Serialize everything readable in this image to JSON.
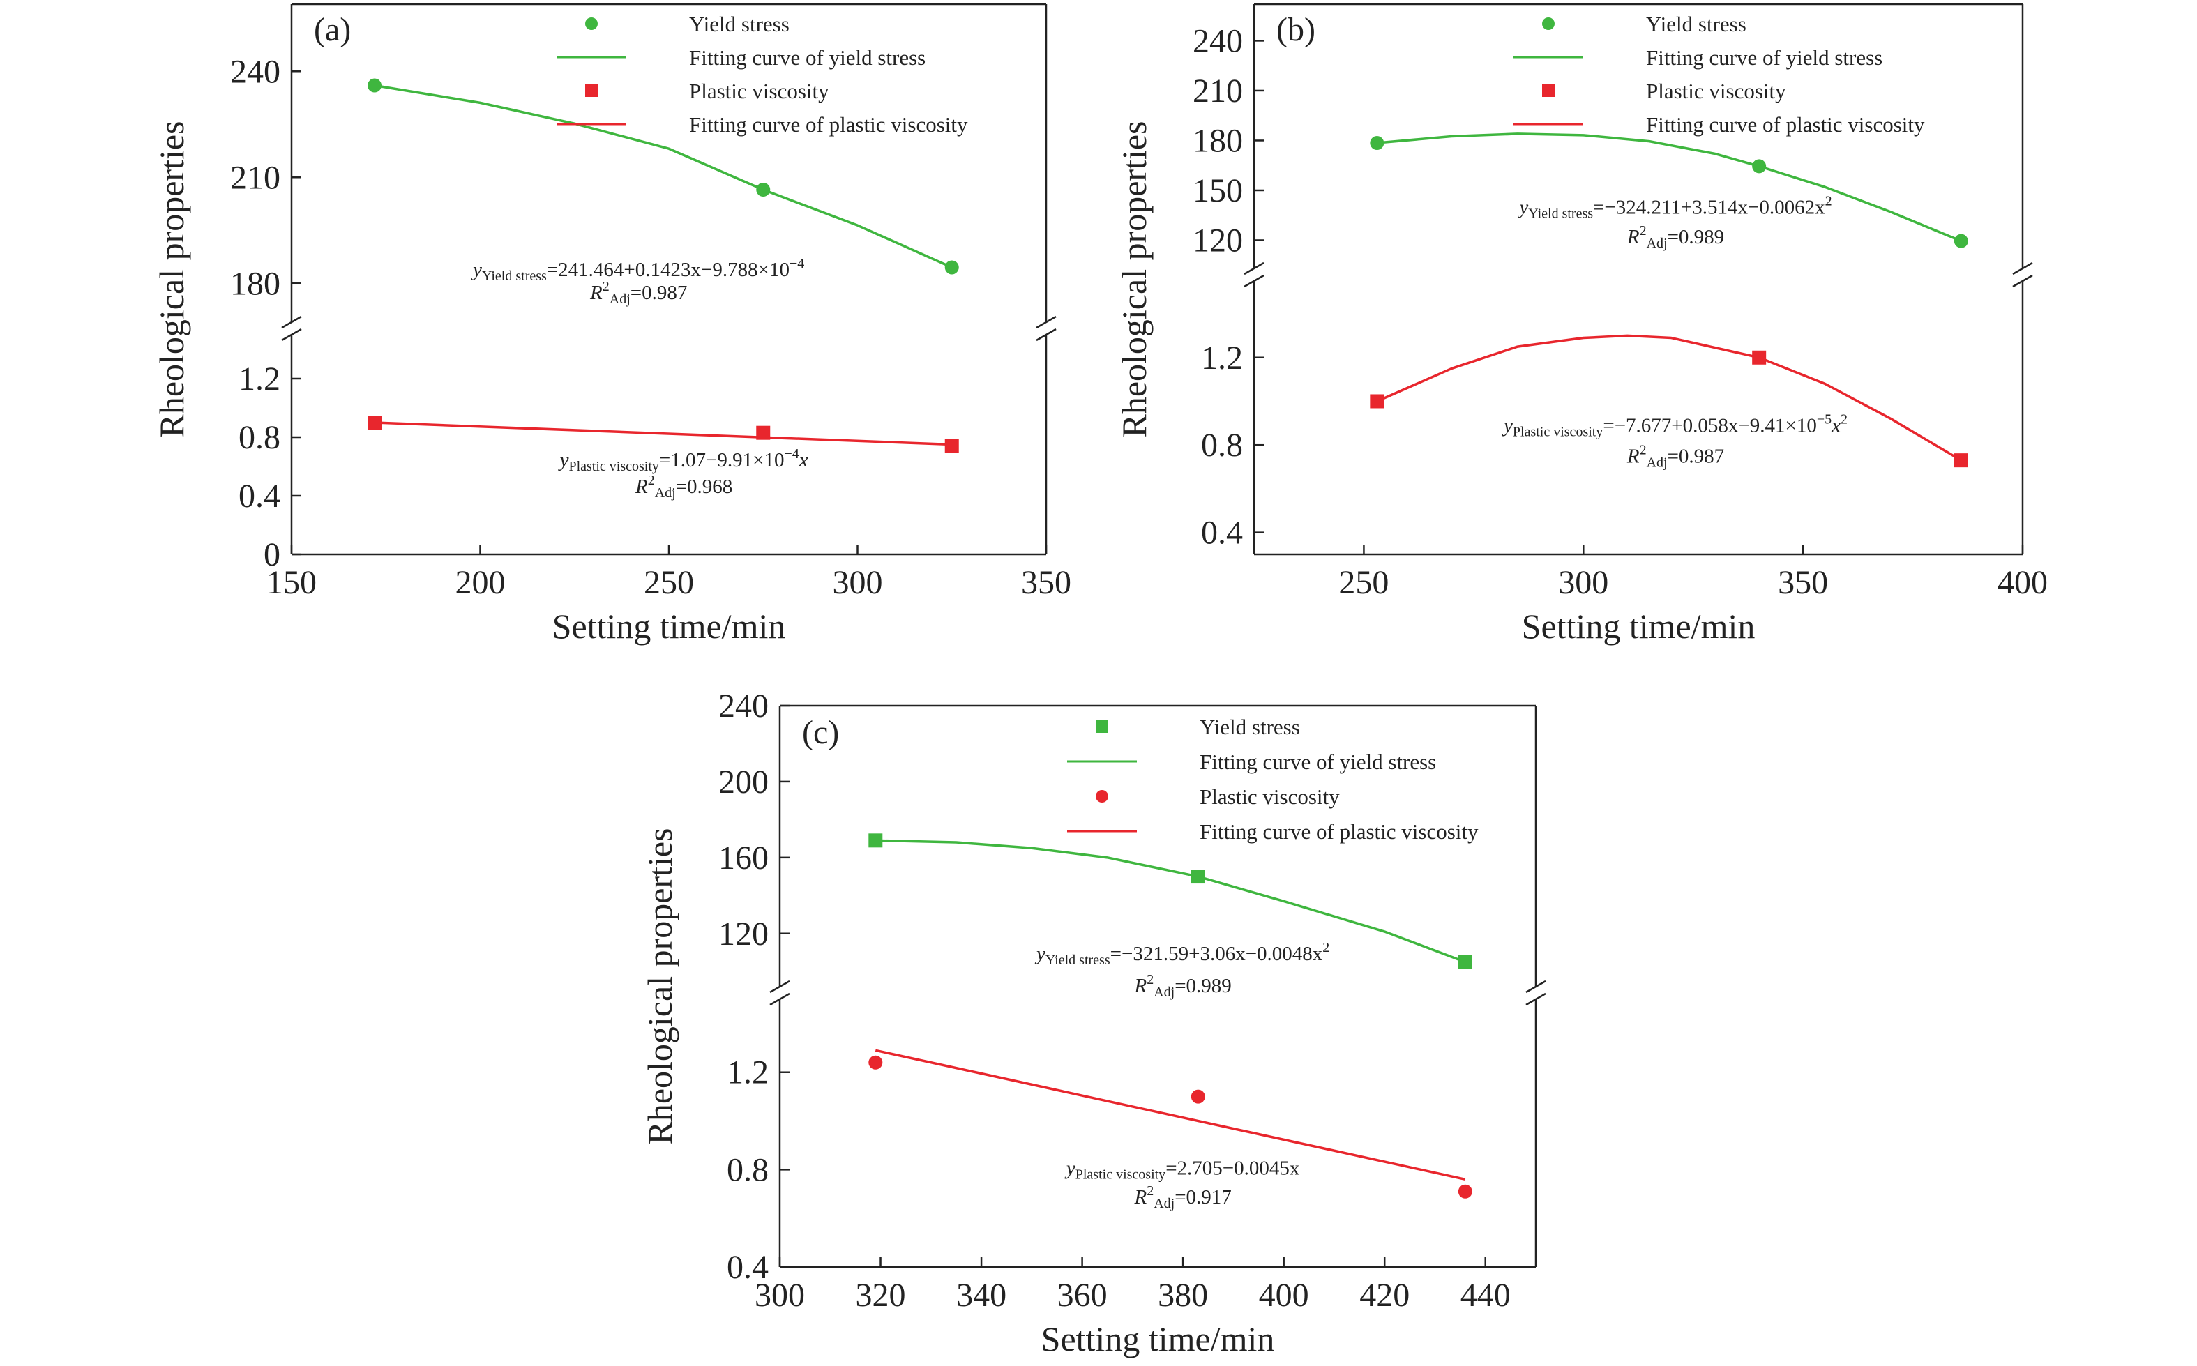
{
  "legend_icons": {
    "circle": "circle-marker",
    "square": "square-marker"
  },
  "chart_data": [
    {
      "type": "scatter",
      "panel_label": "(a)",
      "xlabel": "Setting time/min",
      "ylabel": "Rheological properties",
      "xlim": [
        150,
        350
      ],
      "xticks": [
        150,
        200,
        250,
        300,
        350
      ],
      "upper_axis": {
        "ylim": [
          169,
          259
        ],
        "yticks": [
          180,
          210,
          240
        ]
      },
      "lower_axis": {
        "ylim": [
          0,
          1.5
        ],
        "yticks": [
          0,
          0.4,
          0.8,
          1.2
        ]
      },
      "grid": false,
      "legend_position": "top-right",
      "series": [
        {
          "name": "Yield stress",
          "axis": "upper",
          "marker": "circle",
          "color": "#3fb63f",
          "x": [
            172,
            275,
            325
          ],
          "y": [
            236,
            206.5,
            184.5
          ]
        },
        {
          "name": "Fitting curve of yield stress",
          "axis": "upper",
          "kind": "line",
          "color": "#3fb63f",
          "x": [
            172,
            200,
            225,
            250,
            275,
            300,
            325
          ],
          "y": [
            236,
            231.1,
            225.2,
            218.1,
            206.5,
            196.4,
            184.5
          ]
        },
        {
          "name": "Plastic viscosity",
          "axis": "lower",
          "marker": "square",
          "color": "#e8262d",
          "x": [
            172,
            275,
            325
          ],
          "y": [
            0.9,
            0.83,
            0.74
          ]
        },
        {
          "name": "Fitting curve of plastic viscosity",
          "axis": "lower",
          "kind": "line",
          "color": "#e8262d",
          "x": [
            172,
            325
          ],
          "y": [
            0.9,
            0.75
          ]
        }
      ],
      "equations": [
        {
          "y_sub": "Yield stress",
          "rhs": "=241.464+0.1423x−9.788×10",
          "sup": "−4",
          "r2": "=0.987",
          "axis": "upper",
          "x": 242,
          "y": 182,
          "r2_y": 175.5
        },
        {
          "y_sub": "Plastic viscosity",
          "rhs": "=1.07−9.91×10",
          "sup": "−4",
          "rhs_tail": "x",
          "r2": "=0.968",
          "axis": "lower",
          "x": 254,
          "y": 0.6,
          "r2_y": 0.42
        }
      ]
    },
    {
      "type": "scatter",
      "panel_label": "(b)",
      "xlabel": "Setting time/min",
      "ylabel": "Rheological properties",
      "xlim": [
        225,
        400
      ],
      "xticks": [
        250,
        300,
        350,
        400
      ],
      "upper_axis": {
        "ylim": [
          103,
          262
        ],
        "yticks": [
          120,
          150,
          180,
          210,
          240
        ]
      },
      "lower_axis": {
        "ylim": [
          0.3,
          1.55
        ],
        "yticks": [
          0.4,
          0.8,
          1.2
        ]
      },
      "grid": false,
      "legend_position": "top-right",
      "series": [
        {
          "name": "Yield stress",
          "axis": "upper",
          "marker": "circle",
          "color": "#3fb63f",
          "x": [
            253,
            340,
            386
          ],
          "y": [
            178.5,
            164.5,
            119.5
          ]
        },
        {
          "name": "Fitting curve of yield stress",
          "axis": "upper",
          "kind": "line",
          "color": "#3fb63f",
          "x": [
            253,
            270,
            285,
            300,
            315,
            330,
            340,
            355,
            370,
            386
          ],
          "y": [
            178.5,
            182.5,
            184,
            183.2,
            179.5,
            172,
            164.5,
            152,
            137,
            119.5
          ]
        },
        {
          "name": "Plastic viscosity",
          "axis": "lower",
          "marker": "square",
          "color": "#e8262d",
          "x": [
            253,
            340,
            386
          ],
          "y": [
            1.0,
            1.2,
            0.73
          ]
        },
        {
          "name": "Fitting curve of plastic viscosity",
          "axis": "lower",
          "kind": "line",
          "color": "#e8262d",
          "x": [
            253,
            270,
            285,
            300,
            310,
            320,
            340,
            355,
            370,
            386
          ],
          "y": [
            1.0,
            1.15,
            1.25,
            1.29,
            1.3,
            1.29,
            1.2,
            1.08,
            0.92,
            0.73
          ]
        }
      ],
      "equations": [
        {
          "y_sub": "Yield stress",
          "rhs": "=−324.211+3.514x−0.0062x",
          "sup": "2",
          "r2": "=0.989",
          "axis": "upper",
          "x": 321,
          "y": 136,
          "r2_y": 118
        },
        {
          "y_sub": "Plastic viscosity",
          "rhs": "=−7.677+0.058x−9.41×10",
          "sup": "−5",
          "rhs_tail": "x",
          "sup2": "2",
          "r2": "=0.987",
          "axis": "lower",
          "x": 321,
          "y": 0.86,
          "r2_y": 0.72
        }
      ]
    },
    {
      "type": "scatter",
      "panel_label": "(c)",
      "xlabel": "Setting time/min",
      "ylabel": "Rheological properties",
      "xlim": [
        300,
        450
      ],
      "xticks": [
        300,
        320,
        340,
        360,
        380,
        400,
        420,
        440
      ],
      "upper_axis": {
        "ylim": [
          92,
          240
        ],
        "yticks": [
          120,
          160,
          200,
          240
        ]
      },
      "lower_axis": {
        "ylim": [
          0.4,
          1.5
        ],
        "yticks": [
          0.4,
          0.8,
          1.2
        ]
      },
      "grid": false,
      "legend_position": "top-right",
      "series": [
        {
          "name": "Yield stress",
          "axis": "upper",
          "marker": "square",
          "color": "#3fb63f",
          "x": [
            319,
            383,
            436
          ],
          "y": [
            169,
            150,
            105
          ]
        },
        {
          "name": "Fitting curve of yield stress",
          "axis": "upper",
          "kind": "line",
          "color": "#3fb63f",
          "x": [
            319,
            335,
            350,
            365,
            383,
            400,
            420,
            436
          ],
          "y": [
            169,
            168,
            165,
            160,
            150,
            137,
            121,
            105
          ]
        },
        {
          "name": "Plastic viscosity",
          "axis": "lower",
          "marker": "circle",
          "color": "#e8262d",
          "x": [
            319,
            383,
            436
          ],
          "y": [
            1.24,
            1.1,
            0.71
          ]
        },
        {
          "name": "Fitting curve of plastic viscosity",
          "axis": "lower",
          "kind": "line",
          "color": "#e8262d",
          "x": [
            319,
            436
          ],
          "y": [
            1.29,
            0.76
          ]
        }
      ],
      "equations": [
        {
          "y_sub": "Yield stress",
          "rhs": "=−321.59+3.06x−0.0048x",
          "sup": "2",
          "r2": "=0.989",
          "axis": "upper",
          "x": 380,
          "y": 106,
          "r2_y": 89
        },
        {
          "y_sub": "Plastic viscosity",
          "rhs": "=2.705−0.0045x",
          "r2": "=0.917",
          "axis": "lower",
          "x": 380,
          "y": 0.78,
          "r2_y": 0.66
        }
      ]
    }
  ]
}
